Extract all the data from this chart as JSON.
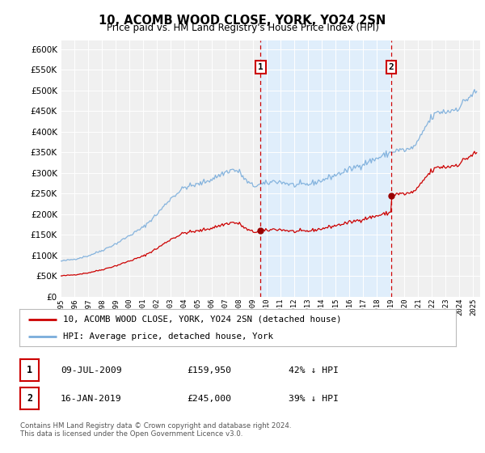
{
  "title": "10, ACOMB WOOD CLOSE, YORK, YO24 2SN",
  "subtitle": "Price paid vs. HM Land Registry's House Price Index (HPI)",
  "hpi_color": "#7aaddb",
  "price_color": "#cc0000",
  "marker1_label": "1",
  "marker2_label": "2",
  "legend_line1": "10, ACOMB WOOD CLOSE, YORK, YO24 2SN (detached house)",
  "legend_line2": "HPI: Average price, detached house, York",
  "table_row1": [
    "1",
    "09-JUL-2009",
    "£159,950",
    "42% ↓ HPI"
  ],
  "table_row2": [
    "2",
    "16-JAN-2019",
    "£245,000",
    "39% ↓ HPI"
  ],
  "footer": "Contains HM Land Registry data © Crown copyright and database right 2024.\nThis data is licensed under the Open Government Licence v3.0.",
  "ylim": [
    0,
    620000
  ],
  "yticks": [
    0,
    50000,
    100000,
    150000,
    200000,
    250000,
    300000,
    350000,
    400000,
    450000,
    500000,
    550000,
    600000
  ],
  "background_color": "#ffffff",
  "plot_bg_color": "#f0f0f0",
  "shade_color": "#ddeeff",
  "sale1_year": 2009.54,
  "sale1_price": 159950,
  "sale2_year": 2019.04,
  "sale2_price": 245000
}
